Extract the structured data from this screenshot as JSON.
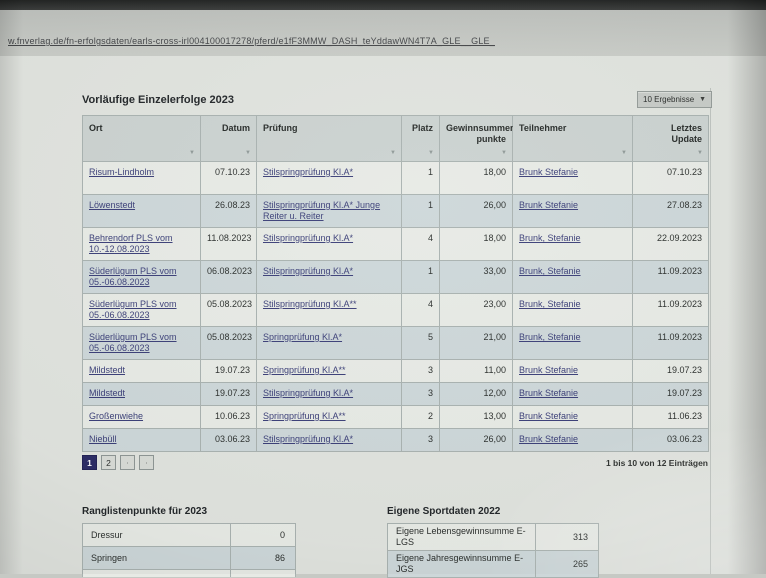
{
  "browser": {
    "url": "w.fnverlag.de/fn-erfolgsdaten/earls-cross-irl004100017278/pferd/e1fF3MMW_DASH_teYddawWN4T7A_GLE__GLE_"
  },
  "results": {
    "title": "Vorläufige Einzelerfolge 2023",
    "per_page_value": "10 Ergebnisse",
    "columns": {
      "ort": "Ort",
      "datum": "Datum",
      "pruefung": "Prüfung",
      "platz": "Platz",
      "punkte": "Gewinnsummen­punkte",
      "teilnehmer": "Teilnehmer",
      "update": "Letztes Update"
    },
    "rows": [
      {
        "ort": "Risum-Lindholm",
        "datum": "07.10.23",
        "pruefung": "Stilspringprüfung Kl.A*",
        "platz": "1",
        "punkte": "18,00",
        "teilnehmer": "Brunk Stefanie",
        "update": "07.10.23"
      },
      {
        "ort": "Löwenstedt",
        "datum": "26.08.23",
        "pruefung": "Stilspringprüfung Kl.A* Junge Reiter u. Reiter",
        "platz": "1",
        "punkte": "26,00",
        "teilnehmer": "Brunk Stefanie",
        "update": "27.08.23"
      },
      {
        "ort": "Behrendorf PLS vom 10.-12.08.2023",
        "datum": "11.08.2023",
        "pruefung": "Stilspringprüfung Kl.A*",
        "platz": "4",
        "punkte": "18,00",
        "teilnehmer": "Brunk, Stefanie",
        "update": "22.09.2023"
      },
      {
        "ort": "Süderlügum PLS vom 05.-06.08.2023",
        "datum": "06.08.2023",
        "pruefung": "Stilspringprüfung Kl.A*",
        "platz": "1",
        "punkte": "33,00",
        "teilnehmer": "Brunk, Stefanie",
        "update": "11.09.2023"
      },
      {
        "ort": "Süderlügum PLS vom 05.-06.08.2023",
        "datum": "05.08.2023",
        "pruefung": "Stilspringprüfung Kl.A**",
        "platz": "4",
        "punkte": "23,00",
        "teilnehmer": "Brunk, Stefanie",
        "update": "11.09.2023"
      },
      {
        "ort": "Süderlügum PLS vom 05.-06.08.2023",
        "datum": "05.08.2023",
        "pruefung": "Springprüfung Kl.A*",
        "platz": "5",
        "punkte": "21,00",
        "teilnehmer": "Brunk, Stefanie",
        "update": "11.09.2023"
      },
      {
        "ort": "Mildstedt",
        "datum": "19.07.23",
        "pruefung": "Springprüfung Kl.A**",
        "platz": "3",
        "punkte": "11,00",
        "teilnehmer": "Brunk Stefanie",
        "update": "19.07.23"
      },
      {
        "ort": "Mildstedt",
        "datum": "19.07.23",
        "pruefung": "Stilspringprüfung Kl.A*",
        "platz": "3",
        "punkte": "12,00",
        "teilnehmer": "Brunk Stefanie",
        "update": "19.07.23"
      },
      {
        "ort": "Großenwiehe",
        "datum": "10.06.23",
        "pruefung": "Springprüfung Kl.A**",
        "platz": "2",
        "punkte": "13,00",
        "teilnehmer": "Brunk Stefanie",
        "update": "11.06.23"
      },
      {
        "ort": "Niebüll",
        "datum": "03.06.23",
        "pruefung": "Stilspringprüfung Kl.A*",
        "platz": "3",
        "punkte": "26,00",
        "teilnehmer": "Brunk Stefanie",
        "update": "03.06.23"
      }
    ],
    "pagination": {
      "pages": [
        "1",
        "2"
      ],
      "current": "1",
      "summary": "1 bis 10 von 12 Einträgen"
    }
  },
  "ranking": {
    "title": "Ranglistenpunkte für 2023",
    "rows": [
      {
        "label": "Dressur",
        "value": "0"
      },
      {
        "label": "Springen",
        "value": "86"
      }
    ]
  },
  "sportdata": {
    "title": "Eigene Sportdaten 2022",
    "rows": [
      {
        "label": "Eigene Lebensgewinnsumme E-LGS",
        "value": "313"
      },
      {
        "label": "Eigene Jahresgewinnsumme E-JGS",
        "value": "265"
      }
    ]
  },
  "icons": {
    "sort": "▼",
    "dropdown": "▼"
  },
  "colors": {
    "accent": "#2d2d66",
    "link_color": "#3b3f78",
    "header_bg": "#cbd2d0",
    "row_light": "#e7eae5",
    "row_blue": "#cdd7d9"
  }
}
